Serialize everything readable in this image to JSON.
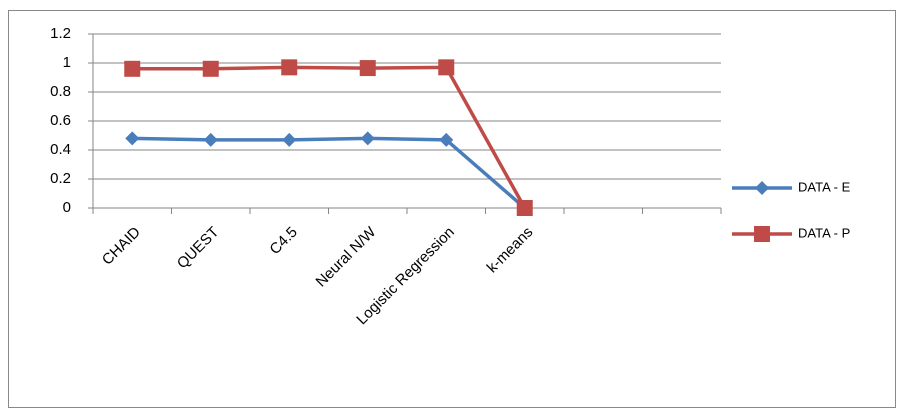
{
  "chart_data": {
    "type": "line",
    "categories": [
      "CHAID",
      "QUEST",
      "C4.5",
      "Neural N/W",
      "Logistic Regression",
      "k-means",
      null,
      null
    ],
    "series": [
      {
        "name": "DATA - E",
        "color": "#4a7ebb",
        "marker": "diamond",
        "values": [
          0.48,
          0.47,
          0.47,
          0.48,
          0.47,
          0,
          null,
          null
        ]
      },
      {
        "name": "DATA - P",
        "color": "#be4b48",
        "marker": "square",
        "values": [
          0.96,
          0.96,
          0.97,
          0.965,
          0.97,
          0,
          null,
          null
        ]
      }
    ],
    "ylim": [
      0,
      1.2
    ],
    "yticks": [
      0,
      0.2,
      0.4,
      0.6,
      0.8,
      1,
      1.2
    ],
    "grid": true,
    "legend": "right"
  }
}
